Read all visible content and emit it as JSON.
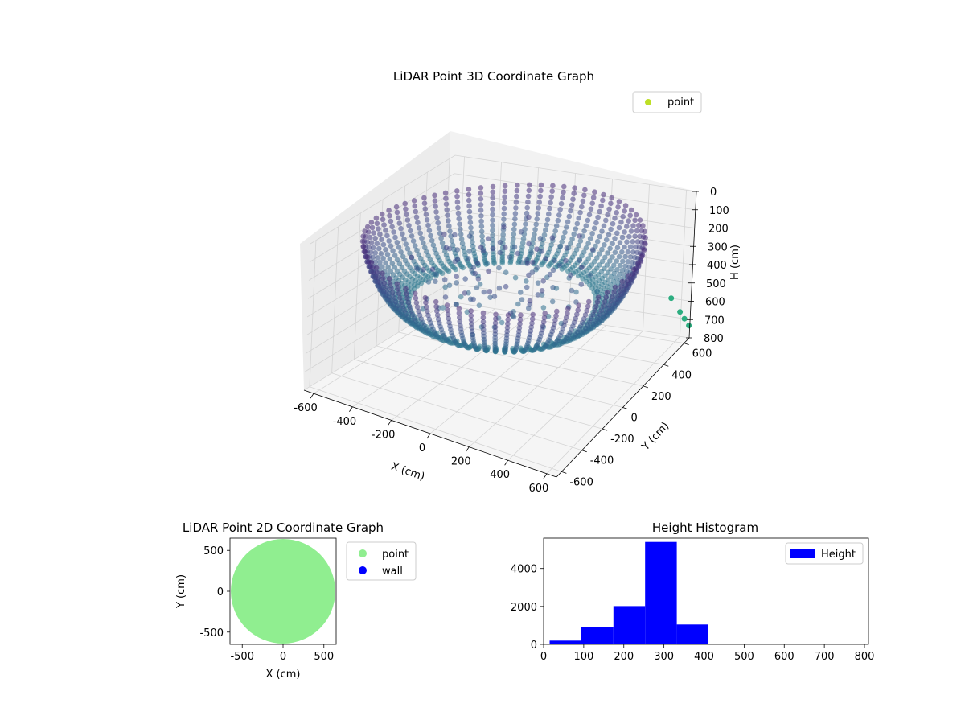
{
  "chart_data": [
    {
      "type": "scatter",
      "projection": "3d",
      "title": "LiDAR Point 3D Coordinate Graph",
      "xlabel": "X (cm)",
      "ylabel": "Y (cm)",
      "zlabel": "H (cm)",
      "xlim": [
        -650,
        650
      ],
      "ylim": [
        -650,
        650
      ],
      "zlim": [
        0,
        800
      ],
      "z_inverted": true,
      "x_ticks": [
        -600,
        -400,
        -200,
        0,
        200,
        400,
        600
      ],
      "y_ticks": [
        -600,
        -400,
        -200,
        0,
        200,
        400,
        600
      ],
      "z_ticks": [
        0,
        100,
        200,
        300,
        400,
        500,
        600,
        700,
        800
      ],
      "grid": true,
      "legend": "top-right",
      "series": [
        {
          "name": "point",
          "colormap": "viridis",
          "legend_color": "#bddf26",
          "shape": "ring of vertical point columns",
          "ring_radius_range": [
            430,
            650
          ],
          "height_range": [
            0,
            400
          ],
          "num_columns": 72,
          "outliers": [
            {
              "x": 560,
              "y": 620,
              "h": 580
            },
            {
              "x": 600,
              "y": 640,
              "h": 660
            },
            {
              "x": 620,
              "y": 650,
              "h": 700
            },
            {
              "x": 640,
              "y": 660,
              "h": 740
            }
          ]
        }
      ]
    },
    {
      "type": "scatter",
      "title": "LiDAR Point 2D Coordinate Graph",
      "xlabel": "X (cm)",
      "ylabel": "Y (cm)",
      "xlim": [
        -650,
        650
      ],
      "ylim": [
        -650,
        650
      ],
      "x_ticks": [
        -500,
        0,
        500
      ],
      "y_ticks": [
        -500,
        0,
        500
      ],
      "legend": "outside-right",
      "series": [
        {
          "name": "point",
          "color": "#90ee90",
          "shape": "filled disk",
          "radius": 640
        },
        {
          "name": "wall",
          "color": "#0000ff",
          "count": 0
        }
      ]
    },
    {
      "type": "bar",
      "subtype": "histogram",
      "title": "Height Histogram",
      "xlim": [
        0,
        810
      ],
      "ylim": [
        0,
        5600
      ],
      "x_ticks": [
        0,
        100,
        200,
        300,
        400,
        500,
        600,
        700,
        800
      ],
      "y_ticks": [
        0,
        2000,
        4000
      ],
      "legend": "top-right",
      "series": [
        {
          "name": "Height",
          "color": "#0000ff",
          "bins": [
            {
              "x0": 15,
              "x1": 94,
              "value": 200
            },
            {
              "x0": 94,
              "x1": 174,
              "value": 920
            },
            {
              "x0": 174,
              "x1": 253,
              "value": 2020
            },
            {
              "x0": 253,
              "x1": 332,
              "value": 5400
            },
            {
              "x0": 332,
              "x1": 411,
              "value": 1050
            },
            {
              "x0": 411,
              "x1": 490,
              "value": 0
            },
            {
              "x0": 490,
              "x1": 569,
              "value": 0
            },
            {
              "x0": 569,
              "x1": 648,
              "value": 0
            },
            {
              "x0": 648,
              "x1": 727,
              "value": 0
            },
            {
              "x0": 727,
              "x1": 806,
              "value": 3
            }
          ]
        }
      ]
    }
  ]
}
